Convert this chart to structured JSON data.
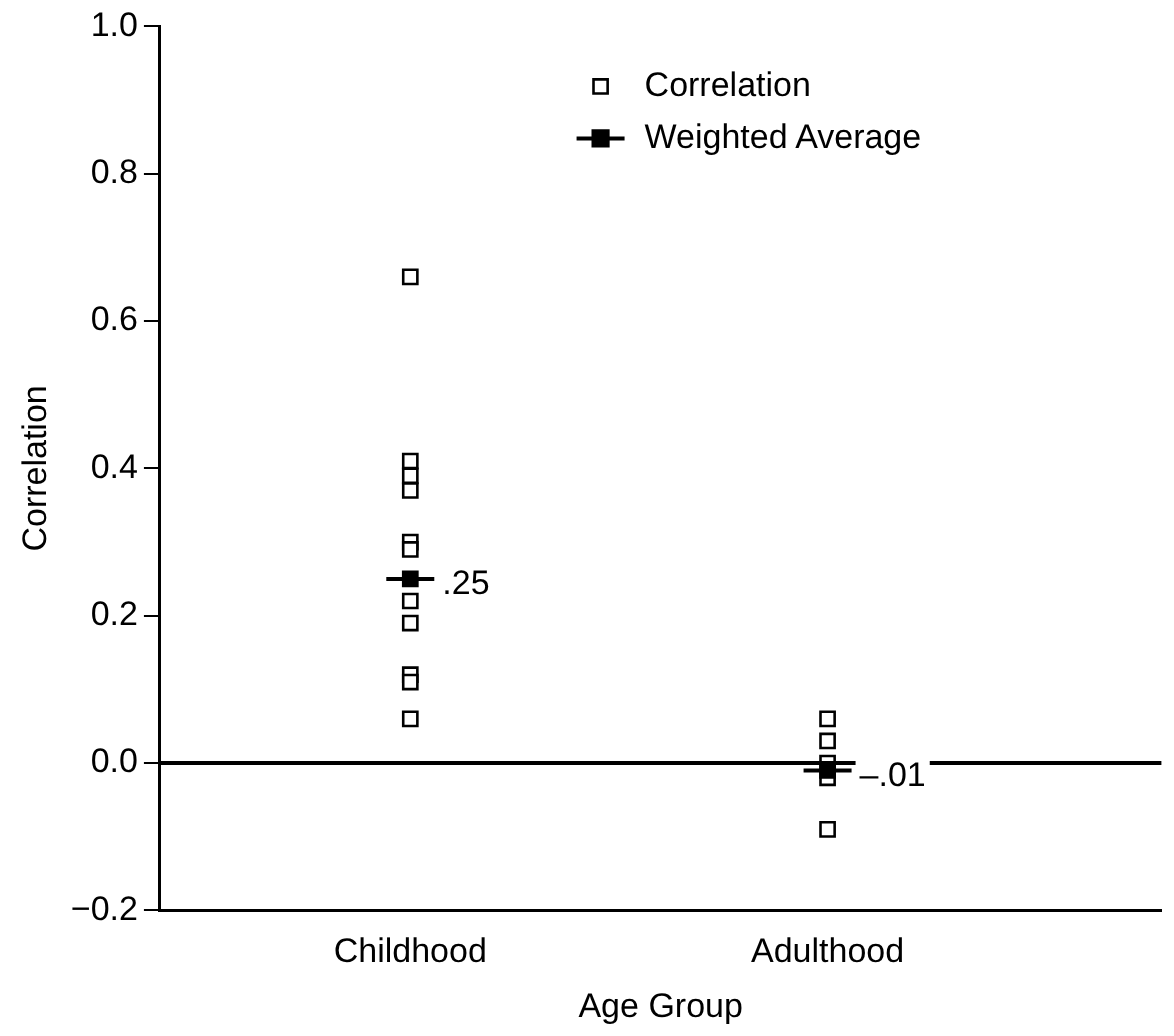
{
  "chart_data": {
    "type": "scatter",
    "xlabel": "Age Group",
    "ylabel": "Correlation",
    "categories": [
      "Childhood",
      "Adulthood"
    ],
    "ylim": [
      -0.2,
      1.0
    ],
    "yticks": [
      {
        "value": -0.2,
        "label": "−0.2"
      },
      {
        "value": 0,
        "label": "0.0"
      },
      {
        "value": 0.2,
        "label": "0.2"
      },
      {
        "value": 0.4,
        "label": "0.4"
      },
      {
        "value": 0.6,
        "label": "0.6"
      },
      {
        "value": 0.8,
        "label": "0.8"
      },
      {
        "value": 1,
        "label": "1.0"
      }
    ],
    "grid": false,
    "legend": "top right",
    "series": [
      {
        "name": "Correlation",
        "color": "#000000",
        "marker": "square",
        "x": [
          "Childhood",
          "Childhood",
          "Childhood",
          "Childhood",
          "Childhood",
          "Childhood",
          "Childhood",
          "Childhood",
          "Childhood",
          "Childhood",
          "Childhood",
          "Adulthood",
          "Adulthood",
          "Adulthood",
          "Adulthood",
          "Adulthood"
        ],
        "values": [
          0.66,
          0.41,
          0.39,
          0.37,
          0.3,
          0.29,
          0.22,
          0.19,
          0.12,
          0.11,
          0.06,
          0.06,
          0.03,
          0.0,
          -0.02,
          -0.09
        ]
      },
      {
        "name": "Weighted Average",
        "color": "#000000",
        "marker": "square",
        "x": [
          "Childhood",
          "Adulthood"
        ],
        "values": [
          0.25,
          -0.01
        ]
      }
    ],
    "ref_lines": [
      {
        "axis": "y",
        "value": 0,
        "color": "#000000"
      }
    ],
    "annotations": [
      {
        "text": ".25",
        "x": "Childhood",
        "y": 0.25
      },
      {
        "text": "–.01",
        "x": "Adulthood",
        "y": -0.01
      }
    ]
  }
}
